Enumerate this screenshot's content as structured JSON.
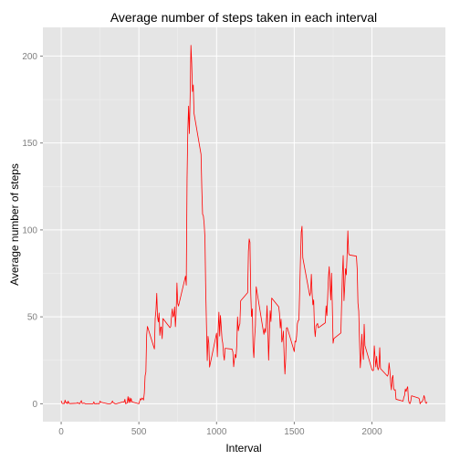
{
  "chart_data": {
    "type": "line",
    "title": "Average number of steps taken in each interval",
    "x_label": "Interval",
    "y_label": "Average number of steps",
    "x": [
      0,
      5,
      10,
      15,
      20,
      25,
      30,
      35,
      40,
      45,
      50,
      55,
      100,
      105,
      110,
      115,
      120,
      125,
      130,
      135,
      140,
      145,
      150,
      155,
      200,
      205,
      210,
      215,
      220,
      225,
      230,
      235,
      240,
      245,
      250,
      255,
      300,
      305,
      310,
      315,
      320,
      325,
      330,
      335,
      340,
      345,
      350,
      355,
      400,
      405,
      410,
      415,
      420,
      425,
      430,
      435,
      440,
      445,
      450,
      455,
      500,
      505,
      510,
      515,
      520,
      525,
      530,
      535,
      540,
      545,
      550,
      555,
      600,
      605,
      610,
      615,
      620,
      625,
      630,
      635,
      640,
      645,
      650,
      655,
      700,
      705,
      710,
      715,
      720,
      725,
      730,
      735,
      740,
      745,
      750,
      755,
      800,
      805,
      810,
      815,
      820,
      825,
      830,
      835,
      840,
      845,
      850,
      855,
      900,
      905,
      910,
      915,
      920,
      925,
      930,
      935,
      940,
      945,
      950,
      955,
      1000,
      1005,
      1010,
      1015,
      1020,
      1025,
      1030,
      1035,
      1040,
      1045,
      1050,
      1055,
      1100,
      1105,
      1110,
      1115,
      1120,
      1125,
      1130,
      1135,
      1140,
      1145,
      1150,
      1155,
      1200,
      1205,
      1210,
      1215,
      1220,
      1225,
      1230,
      1235,
      1240,
      1245,
      1250,
      1255,
      1300,
      1305,
      1310,
      1315,
      1320,
      1325,
      1330,
      1335,
      1340,
      1345,
      1350,
      1355,
      1400,
      1405,
      1410,
      1415,
      1420,
      1425,
      1430,
      1435,
      1440,
      1445,
      1450,
      1455,
      1500,
      1505,
      1510,
      1515,
      1520,
      1525,
      1530,
      1535,
      1540,
      1545,
      1550,
      1555,
      1600,
      1605,
      1610,
      1615,
      1620,
      1625,
      1630,
      1635,
      1640,
      1645,
      1650,
      1655,
      1700,
      1705,
      1710,
      1715,
      1720,
      1725,
      1730,
      1735,
      1740,
      1745,
      1750,
      1755,
      1800,
      1805,
      1810,
      1815,
      1820,
      1825,
      1830,
      1835,
      1840,
      1845,
      1850,
      1855,
      1900,
      1905,
      1910,
      1915,
      1920,
      1925,
      1930,
      1935,
      1940,
      1945,
      1950,
      1955,
      2000,
      2005,
      2010,
      2015,
      2020,
      2025,
      2030,
      2035,
      2040,
      2045,
      2050,
      2055,
      2100,
      2105,
      2110,
      2115,
      2120,
      2125,
      2130,
      2135,
      2140,
      2145,
      2150,
      2155,
      2200,
      2205,
      2210,
      2215,
      2220,
      2225,
      2230,
      2235,
      2240,
      2245,
      2250,
      2255,
      2300,
      2305,
      2310,
      2315,
      2320,
      2325,
      2330,
      2335,
      2340,
      2345,
      2350,
      2355
    ],
    "series": [
      {
        "name": "steps",
        "color": "#ff0000",
        "values": [
          1.7,
          0.3,
          0.1,
          0.2,
          0.1,
          2.1,
          0.5,
          0.9,
          0,
          1.5,
          0.3,
          0.1,
          0.3,
          0.7,
          0.2,
          0.3,
          0,
          1.1,
          1.8,
          0.2,
          0.2,
          0.4,
          0.3,
          0,
          0,
          0,
          1.1,
          0,
          0,
          0.1,
          0,
          0.2,
          0,
          0,
          1.5,
          0.9,
          0,
          0,
          0,
          0,
          0.2,
          0.6,
          1.6,
          0.6,
          0.5,
          0.1,
          0,
          0,
          1.2,
          0.9,
          2.6,
          0,
          0.3,
          0.4,
          4.1,
          0.7,
          3.5,
          0.8,
          3.1,
          1.1,
          0,
          1.6,
          3,
          2.2,
          3.3,
          3,
          2.1,
          6.1,
          16,
          18.3,
          39.5,
          44.5,
          31.5,
          49.3,
          53.8,
          63.5,
          50,
          47.1,
          52.2,
          39.3,
          44,
          44.2,
          37.4,
          49,
          43.8,
          44.4,
          50.5,
          54.5,
          49.9,
          51,
          55.7,
          44.3,
          52.3,
          69.5,
          57.8,
          56.2,
          73.4,
          68.2,
          129.4,
          157.5,
          171.2,
          155.4,
          177.3,
          206.2,
          195.9,
          179.6,
          183.4,
          167,
          143.5,
          124,
          109.1,
          108.1,
          103.7,
          95.9,
          66.2,
          45.2,
          24.8,
          38.8,
          35,
          21.1,
          40.6,
          27,
          42.4,
          52.7,
          38.9,
          50.8,
          44.3,
          37.4,
          34.7,
          28.3,
          25.1,
          31.9,
          31.4,
          29.7,
          21.3,
          25.5,
          28.4,
          26.5,
          33.4,
          50,
          42,
          44.6,
          46,
          59.2,
          63.9,
          87.7,
          94.8,
          92.8,
          63.4,
          50.2,
          54.5,
          32.4,
          26.5,
          37.7,
          45.1,
          67.3,
          42.3,
          39.9,
          43.3,
          41,
          46.2,
          56.4,
          42.8,
          25.1,
          40,
          53.5,
          47.3,
          60.8,
          55.8,
          52,
          43.6,
          48.7,
          35.5,
          37.5,
          41.8,
          27.5,
          17.1,
          26.1,
          43.6,
          43.8,
          30,
          36.1,
          35.5,
          38.8,
          46,
          47.8,
          48.1,
          65.3,
          82.9,
          98.7,
          102.1,
          84,
          62.1,
          64.1,
          74.5,
          63.2,
          56.9,
          59.8,
          43.9,
          38.6,
          44.7,
          45.5,
          46.2,
          43.7,
          46.6,
          56.3,
          50.7,
          61.2,
          72.7,
          78.9,
          68.9,
          59.7,
          75.1,
          56.5,
          34.8,
          37.5,
          40.7,
          58,
          74.7,
          85.3,
          59.3,
          67.8,
          77.7,
          74.2,
          85.3,
          99.5,
          86.6,
          85.6,
          84.9,
          77.8,
          58,
          53.4,
          36.3,
          20.7,
          27.4,
          40,
          30.2,
          25.5,
          45.7,
          33.5,
          19.6,
          19,
          19.3,
          33.3,
          26.8,
          21.2,
          27.3,
          21.3,
          19.5,
          21.3,
          32.3,
          20.2,
          15.9,
          17.2,
          23.5,
          19.2,
          12.5,
          8,
          14.7,
          16.3,
          8.7,
          7.8,
          8.1,
          2.6,
          1.5,
          3.7,
          4.8,
          8.5,
          7.1,
          8.7,
          9.8,
          2.2,
          0.3,
          0.1,
          1.6,
          4.6,
          3.3,
          2.8,
          0,
          0.8,
          1,
          1.6,
          2.6,
          4.7,
          3.3,
          0.6,
          0.2,
          1.1
        ]
      }
    ],
    "xlim": [
      -117.75,
      2472.75
    ],
    "xticks": [
      0,
      500,
      1000,
      1500,
      2000
    ],
    "ylim": [
      -10.3,
      216.5
    ],
    "yticks": [
      0,
      50,
      100,
      150,
      200
    ],
    "grid": true
  }
}
